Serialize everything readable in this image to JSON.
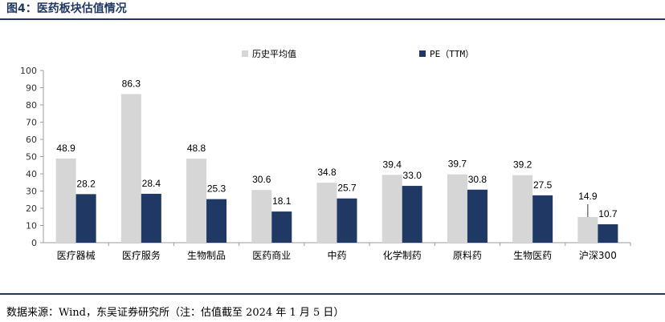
{
  "figure_title": "图4：医药板块估值情况",
  "source_note": "数据来源：Wind，东吴证券研究所（注：估值截至 2024 年 1 月 5 日）",
  "colors": {
    "series1": "#d6d6d6",
    "series2": "#1f3864",
    "rule": "#1f3864",
    "axis": "#9e9e9e"
  },
  "chart_data": {
    "type": "bar",
    "title": "",
    "xlabel": "",
    "ylabel": "",
    "ylim": [
      0,
      100
    ],
    "yticks": [
      0,
      10,
      20,
      30,
      40,
      50,
      60,
      70,
      80,
      90,
      100
    ],
    "grid": false,
    "legend_position": "top",
    "categories": [
      "医疗器械",
      "医疗服务",
      "生物制品",
      "医药商业",
      "中药",
      "化学制药",
      "原料药",
      "生物医药",
      "沪深300"
    ],
    "series": [
      {
        "name": "历史平均值",
        "values": [
          48.9,
          86.3,
          48.8,
          30.6,
          34.8,
          39.4,
          39.7,
          39.2,
          14.9
        ]
      },
      {
        "name": "PE（TTM）",
        "values": [
          28.2,
          28.4,
          25.3,
          18.1,
          25.7,
          33.0,
          30.8,
          27.5,
          10.7
        ]
      }
    ]
  }
}
